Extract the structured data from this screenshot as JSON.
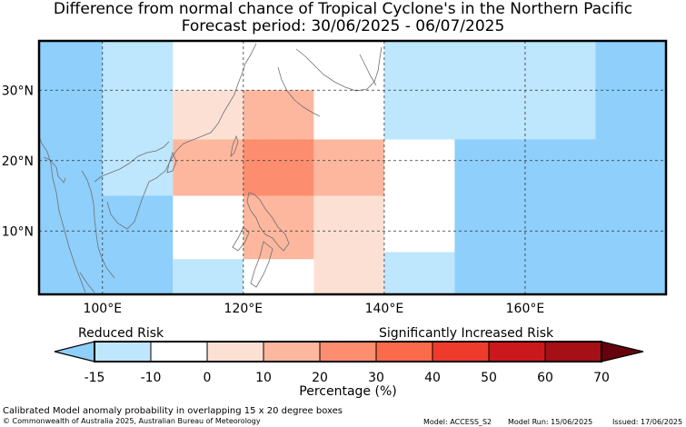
{
  "title": "Difference from normal chance of Tropical Cyclone's in the Northern Pacific",
  "subtitle": "Forecast period: 30/06/2025 - 06/07/2025",
  "map": {
    "lon_range": [
      91,
      180
    ],
    "lat_range": [
      1,
      37
    ],
    "lon_ticks": [
      {
        "value": 100,
        "label": "100°E"
      },
      {
        "value": 120,
        "label": "120°E"
      },
      {
        "value": 140,
        "label": "140°E"
      },
      {
        "value": 160,
        "label": "160°E"
      }
    ],
    "lat_ticks": [
      {
        "value": 10,
        "label": "10°N"
      },
      {
        "value": 20,
        "label": "20°N"
      },
      {
        "value": 30,
        "label": "30°N"
      }
    ],
    "gridlines": "dashed",
    "cells": [
      {
        "lon": [
          91,
          100
        ],
        "lat": [
          1,
          37
        ],
        "color": "#8ecffb"
      },
      {
        "lon": [
          100,
          110
        ],
        "lat": [
          15,
          37
        ],
        "color": "#bee6fd"
      },
      {
        "lon": [
          100,
          110
        ],
        "lat": [
          1,
          15
        ],
        "color": "#8ecffb"
      },
      {
        "lon": [
          110,
          130
        ],
        "lat": [
          15,
          23
        ],
        "color": "#fcb79e"
      },
      {
        "lon": [
          120,
          130
        ],
        "lat": [
          15,
          23
        ],
        "color": "#fc8e6f"
      },
      {
        "lon": [
          110,
          120
        ],
        "lat": [
          23,
          30
        ],
        "color": "#fde0d4"
      },
      {
        "lon": [
          120,
          130
        ],
        "lat": [
          23,
          30
        ],
        "color": "#fcb79e"
      },
      {
        "lon": [
          120,
          130
        ],
        "lat": [
          6,
          15
        ],
        "color": "#fcb79e"
      },
      {
        "lon": [
          110,
          120
        ],
        "lat": [
          1,
          6
        ],
        "color": "#bee6fd"
      },
      {
        "lon": [
          130,
          140
        ],
        "lat": [
          15,
          23
        ],
        "color": "#fcb79e"
      },
      {
        "lon": [
          130,
          140
        ],
        "lat": [
          1,
          15
        ],
        "color": "#fde0d4"
      },
      {
        "lon": [
          140,
          150
        ],
        "lat": [
          1,
          7
        ],
        "color": "#bee6fd"
      },
      {
        "lon": [
          140,
          170
        ],
        "lat": [
          23,
          37
        ],
        "color": "#bee6fd"
      },
      {
        "lon": [
          150,
          180
        ],
        "lat": [
          1,
          23
        ],
        "color": "#8ecffb"
      },
      {
        "lon": [
          170,
          180
        ],
        "lat": [
          23,
          37
        ],
        "color": "#8ecffb"
      }
    ]
  },
  "colorbar": {
    "reduced_label": "Reduced Risk",
    "increased_label": "Significantly Increased Risk",
    "axis_label": "Percentage (%)",
    "ticks": [
      "-15",
      "-10",
      "0",
      "10",
      "20",
      "30",
      "40",
      "50",
      "60",
      "70"
    ],
    "under_color": "#8ecffb",
    "over_color": "#67000d",
    "segment_colors": [
      "#bee6fd",
      "#ffffff",
      "#fde0d4",
      "#fcb79e",
      "#fc8e6f",
      "#fb6a4a",
      "#ef3b2c",
      "#cb181d",
      "#a50f15"
    ]
  },
  "footer": {
    "note": "Calibrated Model anomaly probability in overlapping 15 x 20 degree boxes",
    "copyright": "© Commonwealth of Australia 2025, Australian Bureau of Meteorology",
    "model": "Model: ACCESS_S2",
    "model_run": "Model Run: 15/06/2025",
    "issued": "Issued: 17/06/2025"
  }
}
